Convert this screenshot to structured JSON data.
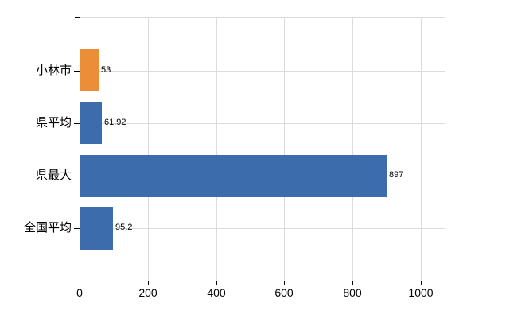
{
  "chart_data": {
    "type": "bar",
    "orientation": "horizontal",
    "title": "",
    "xlabel": "",
    "ylabel": "",
    "categories": [
      "小林市",
      "県平均",
      "県最大",
      "全国平均"
    ],
    "values": [
      53,
      61.92,
      897,
      95.2
    ],
    "value_labels": [
      "53",
      "61.92",
      "897",
      "95.2"
    ],
    "bar_colors": [
      "#EC8D38",
      "#3C6CAB",
      "#3C6CAB",
      "#3C6CAB"
    ],
    "x_ticks": [
      0,
      200,
      400,
      600,
      800,
      1000
    ],
    "x_tick_labels": [
      "0",
      "200",
      "400",
      "600",
      "800",
      "1000"
    ],
    "xlim": [
      0,
      1072
    ],
    "grid": true,
    "legend": false,
    "colors": {
      "highlight_bar": "#EC8D38",
      "default_bar": "#3C6CAB",
      "gridline": "#dbdbdb",
      "axis": "#000000",
      "text": "#000000",
      "background": "#ffffff"
    }
  }
}
